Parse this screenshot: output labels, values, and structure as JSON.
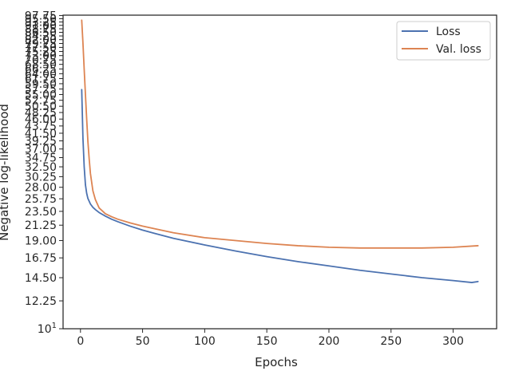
{
  "chart_data": {
    "type": "line",
    "title": "",
    "xlabel": "Epochs",
    "ylabel": "Negative log-likelihood",
    "yscale": "log",
    "xlim": [
      -14,
      335
    ],
    "ylim": [
      10,
      98
    ],
    "grid": false,
    "legend_position": "top-right",
    "x_ticks": [
      0,
      50,
      100,
      150,
      200,
      250,
      300
    ],
    "x_tick_labels": [
      "0",
      "50",
      "100",
      "150",
      "200",
      "250",
      "300"
    ],
    "y_ticks": [
      10,
      12.25,
      14.5,
      16.75,
      19.0,
      21.25,
      23.5,
      25.75,
      28.0,
      30.25,
      32.5,
      34.75,
      37.0,
      39.25,
      41.5,
      43.75,
      46.0,
      48.25,
      50.5,
      52.75,
      55.0,
      57.25,
      59.5,
      61.75,
      64.0,
      66.25,
      68.5,
      70.75,
      73.0,
      75.25,
      77.5,
      79.75,
      82.0,
      84.25,
      86.5,
      88.75,
      91.0,
      93.25,
      95.5,
      97.75
    ],
    "y_tick_labels": [
      "10¹",
      "12.25",
      "14.50",
      "16.75",
      "19.00",
      "21.25",
      "23.50",
      "25.75",
      "28.00",
      "30.25",
      "32.50",
      "34.75",
      "37.00",
      "39.25",
      "41.50",
      "43.75",
      "46.00",
      "48.25",
      "50.50",
      "52.75",
      "55.00",
      "57.25",
      "59.50",
      "61.75",
      "64.00",
      "66.25",
      "68.50",
      "70.75",
      "73.00",
      "75.25",
      "77.50",
      "79.75",
      "82.00",
      "84.25",
      "86.50",
      "88.75",
      "91.00",
      "93.25",
      "95.50",
      "97.75"
    ],
    "series": [
      {
        "name": "Loss",
        "color": "#4c72b0",
        "x": [
          1,
          2,
          3,
          4,
          5,
          6,
          8,
          10,
          12,
          15,
          20,
          25,
          30,
          40,
          50,
          60,
          75,
          100,
          125,
          150,
          175,
          200,
          225,
          250,
          275,
          300,
          315,
          320
        ],
        "y": [
          57,
          40,
          32.5,
          28.5,
          26.8,
          25.8,
          24.8,
          24.2,
          23.8,
          23.3,
          22.7,
          22.2,
          21.8,
          21.1,
          20.5,
          20.0,
          19.3,
          18.4,
          17.6,
          16.9,
          16.3,
          15.8,
          15.3,
          14.9,
          14.5,
          14.2,
          14.0,
          14.1
        ]
      },
      {
        "name": "Val. loss",
        "color": "#dd8452",
        "x": [
          1,
          2,
          3,
          4,
          5,
          6,
          7,
          8,
          10,
          12,
          15,
          20,
          25,
          30,
          40,
          50,
          60,
          75,
          100,
          125,
          150,
          175,
          200,
          225,
          250,
          275,
          300,
          320
        ],
        "y": [
          94.5,
          80,
          66,
          55,
          46,
          39,
          34.5,
          31,
          27.3,
          25.6,
          24.1,
          23.1,
          22.6,
          22.2,
          21.6,
          21.1,
          20.7,
          20.1,
          19.4,
          19.0,
          18.6,
          18.3,
          18.1,
          18.0,
          18.0,
          18.0,
          18.1,
          18.3
        ]
      }
    ]
  }
}
